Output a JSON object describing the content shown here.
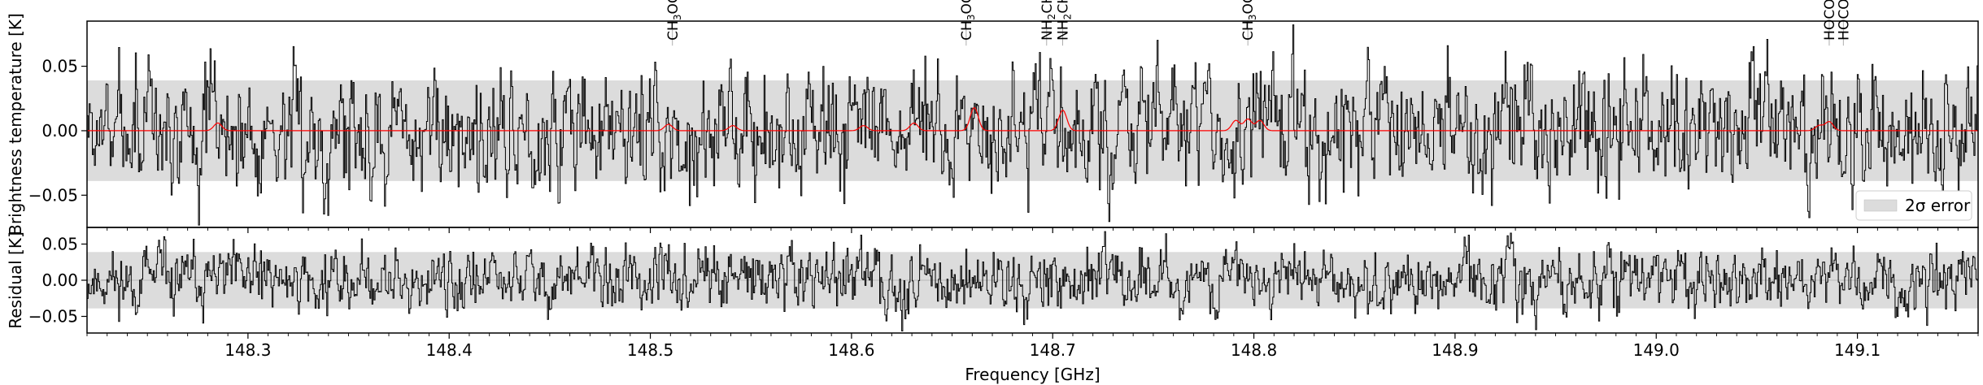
{
  "chart_data": [
    {
      "panel": "spectrum",
      "type": "line",
      "xlabel": "",
      "ylabel": "Brightness temperature [K]",
      "xlim": [
        148.22,
        149.16
      ],
      "ylim": [
        -0.075,
        0.085
      ],
      "yticks": [
        {
          "value": 0.05,
          "label": "0.05"
        },
        {
          "value": 0.0,
          "label": "0.00"
        },
        {
          "value": -0.05,
          "label": "−0.05"
        }
      ],
      "error_band": {
        "low": -0.039,
        "high": 0.039,
        "color": "#dcdcdc"
      },
      "legend": {
        "position": "lower right",
        "entries": [
          {
            "label": "2σ error",
            "color": "#dcdcdc"
          }
        ]
      },
      "series": [
        {
          "kind": "observed",
          "color": "#000000",
          "amplitude": 0.022,
          "seed": 7
        },
        {
          "kind": "model",
          "color": "#ff0000",
          "baseline": 0.0,
          "peaks": [
            {
              "x": 148.285,
              "y": 0.006
            },
            {
              "x": 148.509,
              "y": 0.005
            },
            {
              "x": 148.541,
              "y": 0.004
            },
            {
              "x": 148.606,
              "y": 0.004
            },
            {
              "x": 148.631,
              "y": 0.006
            },
            {
              "x": 148.661,
              "y": 0.018
            },
            {
              "x": 148.705,
              "y": 0.016
            },
            {
              "x": 148.791,
              "y": 0.008
            },
            {
              "x": 148.797,
              "y": 0.009
            },
            {
              "x": 148.803,
              "y": 0.008
            },
            {
              "x": 149.081,
              "y": 0.004
            },
            {
              "x": 149.086,
              "y": 0.007
            }
          ]
        }
      ],
      "line_labels": [
        {
          "x": 148.511,
          "main": "CH",
          "sub": "3",
          "rest": "OCHO"
        },
        {
          "x": 148.657,
          "main": "CH",
          "sub": "3",
          "rest": "OCHO"
        },
        {
          "x": 148.697,
          "main": "NH",
          "sub": "2",
          "rest": "CHO"
        },
        {
          "x": 148.705,
          "main": "NH",
          "sub": "2",
          "rest": "CHO"
        },
        {
          "x": 148.797,
          "main": "CH",
          "sub": "3",
          "rest": "OCHO"
        },
        {
          "x": 149.086,
          "main": "HOCO",
          "sup": "+",
          "rest": ""
        },
        {
          "x": 149.093,
          "main": "HOCO",
          "sup": "+",
          "rest": ""
        }
      ]
    },
    {
      "panel": "residual",
      "type": "line",
      "xlabel": "Frequency [GHz]",
      "ylabel": "Residual [K]",
      "xlim": [
        148.22,
        149.16
      ],
      "ylim": [
        -0.073,
        0.073
      ],
      "xticks": [
        {
          "value": 148.3,
          "label": "148.3"
        },
        {
          "value": 148.4,
          "label": "148.4"
        },
        {
          "value": 148.5,
          "label": "148.5"
        },
        {
          "value": 148.6,
          "label": "148.6"
        },
        {
          "value": 148.7,
          "label": "148.7"
        },
        {
          "value": 148.8,
          "label": "148.8"
        },
        {
          "value": 148.9,
          "label": "148.9"
        },
        {
          "value": 149.0,
          "label": "149.0"
        },
        {
          "value": 149.1,
          "label": "149.1"
        }
      ],
      "yticks": [
        {
          "value": 0.05,
          "label": "0.05"
        },
        {
          "value": 0.0,
          "label": "0.00"
        },
        {
          "value": -0.05,
          "label": "−0.05"
        }
      ],
      "error_band": {
        "low": -0.039,
        "high": 0.039,
        "color": "#dcdcdc"
      },
      "series": [
        {
          "kind": "residual",
          "color": "#000000",
          "amplitude": 0.02,
          "seed": 11
        }
      ]
    }
  ]
}
